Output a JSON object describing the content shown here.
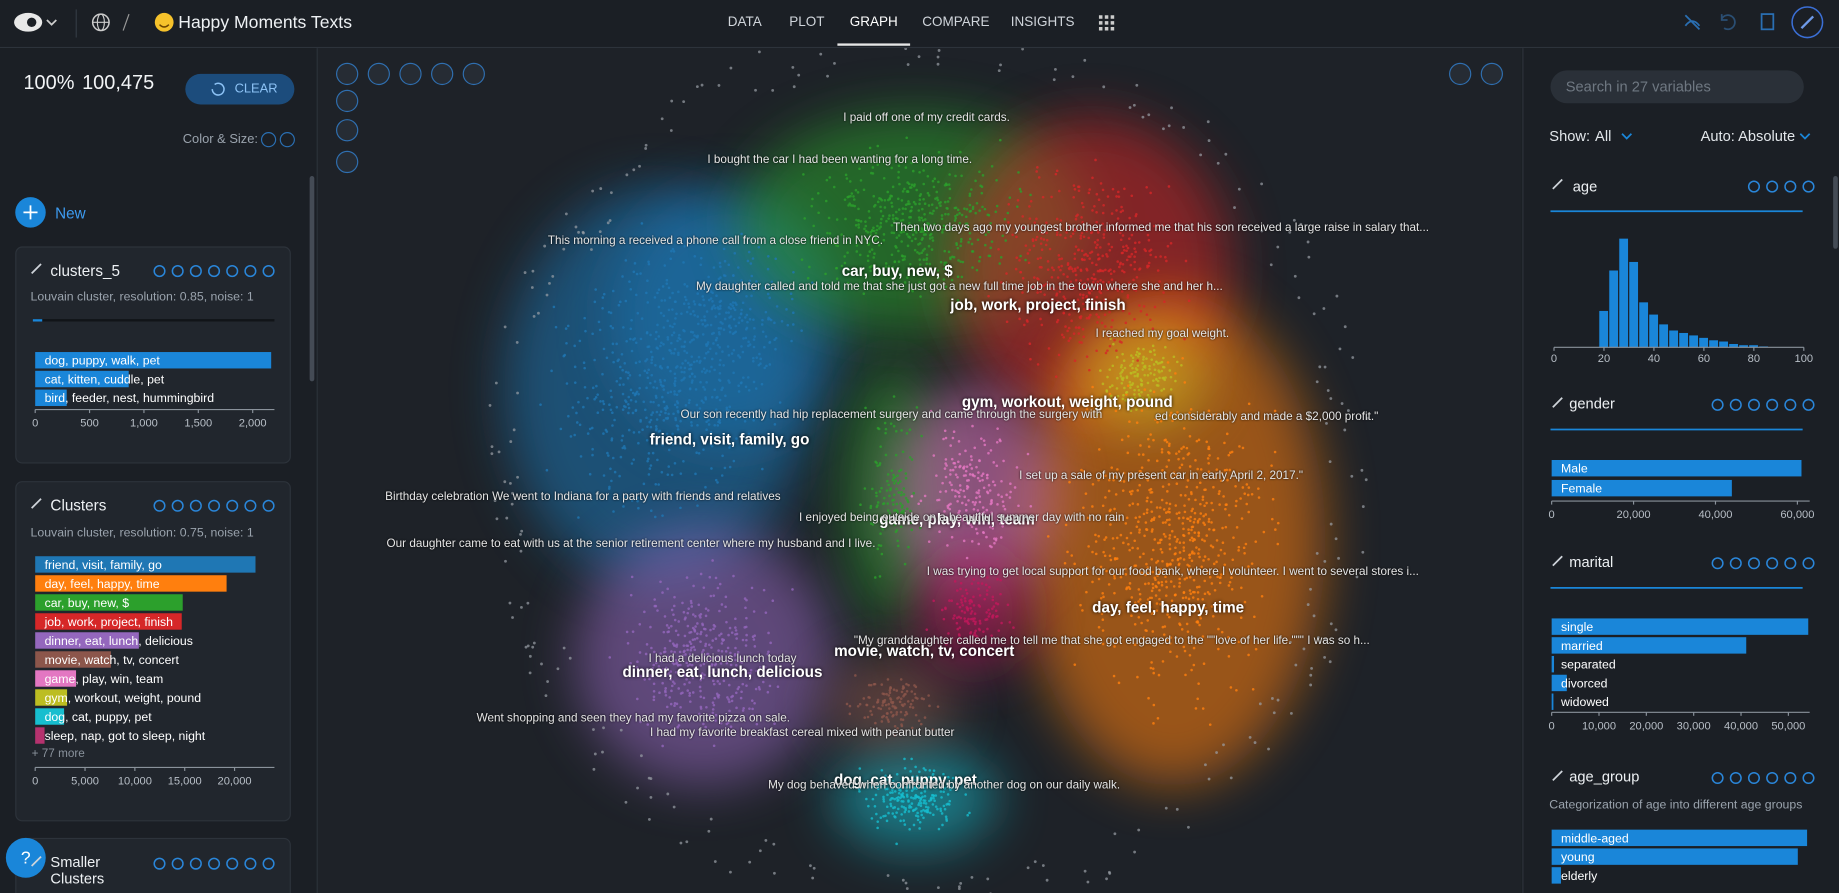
{
  "header": {
    "title": "Happy Moments Texts",
    "tabs": [
      "DATA",
      "PLOT",
      "GRAPH",
      "COMPARE",
      "INSIGHTS"
    ]
  },
  "left": {
    "percent": "100%",
    "count": "100,475",
    "clear": "CLEAR",
    "color_size": "Color & Size:",
    "new": "New",
    "help": "?",
    "cards": [
      {
        "title": "clusters_5",
        "subtitle": "Louvain cluster, resolution: 0.85, noise: 1",
        "chart": {
          "categories": [
            "dog, puppy, walk, pet",
            "cat, kitten, cuddle, pet",
            "bird, feeder, nest, hummingbird"
          ],
          "values": [
            2170,
            860,
            290
          ],
          "color": "#1a86d9",
          "xlim": [
            0,
            2200
          ],
          "xticks": [
            0,
            500,
            {
              "value": 1000,
              "label": "1,000"
            },
            {
              "value": 1500,
              "label": "1,500"
            },
            {
              "value": 2000,
              "label": "2,000"
            }
          ]
        }
      },
      {
        "title": "Clusters",
        "subtitle": "Louvain cluster, resolution: 0.75, noise: 1",
        "chart": {
          "categories": [
            "friend, visit, family, go",
            "day, feel, happy, time",
            "car, buy, new, $",
            "job, work, project, finish",
            "dinner, eat, lunch, delicious",
            "movie, watch, tv, concert",
            "game, play, win, team",
            "gym, workout, weight, pound",
            "dog, cat, puppy, pet",
            "sleep, nap, got to sleep, night"
          ],
          "values": [
            22100,
            19200,
            14800,
            14700,
            10400,
            7600,
            4100,
            3200,
            2900,
            940
          ],
          "colors": [
            "#1f77b4",
            "#ff7f0e",
            "#2ca02c",
            "#d62728",
            "#9467bd",
            "#8c564b",
            "#e377c2",
            "#bcbd22",
            "#17becf",
            "#b5326e"
          ],
          "xlim": [
            0,
            24000
          ],
          "xticks": [
            0,
            {
              "value": 5000,
              "label": "5,000"
            },
            {
              "value": 10000,
              "label": "10,000"
            },
            {
              "value": 15000,
              "label": "15,000"
            },
            {
              "value": 20000,
              "label": "20,000"
            }
          ],
          "more": "+ 77 more"
        }
      },
      {
        "title": "Smaller Clusters"
      }
    ]
  },
  "graph": {
    "cluster_labels": [
      "car, buy, new, $",
      "job, work, project, finish",
      "gym, workout, weight, pound",
      "friend, visit, family, go",
      "game, play, win, team",
      "day, feel, happy, time",
      "movie, watch, tv, concert",
      "dinner, eat, lunch, delicious",
      "dog, cat, puppy, pet"
    ],
    "samples": [
      "I paid off one of my credit cards.",
      "I bought the car I had been wanting for a long time.",
      "Then two days ago my youngest brother informed me that his son received a large raise in salary that...",
      "This morning a received a phone call from a close friend in NYC.",
      "My daughter called and told me that she just got a new full time job in the town where she and her h...",
      "I reached my goal weight.",
      "Our son recently had hip replacement surgery and came through the surgery with",
      "ed considerably and made a $2,000 profit.\"",
      "I set up a sale of my present car in early April 2, 2017.\"",
      "Birthday celebration We went to Indiana for a party with friends and relatives",
      "I enjoyed being outside on a beautiful summer day with no rain",
      "Our daughter came to eat with us at the senior retirement center where my husband and I live.",
      "I was trying to get local support for our food bank, where I volunteer.  I went to several stores i...",
      "\"My granddaughter called me to tell me that she got engaged to the \"\"love of her life.\"\"\" I was so h...",
      "I had a delicious lunch today",
      "Went shopping and seen they had my favorite pizza on sale.",
      "I had my favorite breakfast cereal mixed with peanut butter",
      "My dog behaved when confronted by another dog on our daily walk."
    ]
  },
  "right": {
    "search_placeholder": "Search in 27 variables",
    "show": "Show:",
    "show_value": "All",
    "scale": "Auto: Absolute",
    "variables": [
      {
        "name": "age",
        "chart": {
          "type": "histogram",
          "bins": [
            18,
            22,
            26,
            30,
            34,
            38,
            42,
            46,
            50,
            54,
            58,
            62,
            66,
            70,
            74,
            78,
            82,
            86
          ],
          "counts": [
            7500,
            15750,
            22250,
            17500,
            9250,
            6750,
            4750,
            3500,
            3000,
            2500,
            2000,
            1500,
            1250,
            750,
            500,
            500,
            250
          ],
          "color": "#1a86d9",
          "xlim": [
            0,
            100
          ],
          "ylim": [
            0,
            23000
          ],
          "xticks": [
            0,
            20,
            40,
            60,
            80,
            100
          ]
        }
      },
      {
        "name": "gender",
        "chart": {
          "type": "bar",
          "categories": [
            "Male",
            "Female"
          ],
          "values": [
            61000,
            44000
          ],
          "color": "#1a86d9",
          "xlim": [
            0,
            63000
          ],
          "xticks": [
            0,
            {
              "value": 20000,
              "label": "20,000"
            },
            {
              "value": 40000,
              "label": "40,000"
            },
            {
              "value": 60000,
              "label": "60,000"
            }
          ]
        }
      },
      {
        "name": "marital",
        "chart": {
          "type": "bar",
          "categories": [
            "single",
            "married",
            "separated",
            "divorced",
            "widowed"
          ],
          "values": [
            54200,
            41100,
            500,
            3200,
            300
          ],
          "color": "#1a86d9",
          "xlim": [
            0,
            54500
          ],
          "xticks": [
            0,
            {
              "value": 10000,
              "label": "10,000"
            },
            {
              "value": 20000,
              "label": "20,000"
            },
            {
              "value": 30000,
              "label": "30,000"
            },
            {
              "value": 40000,
              "label": "40,000"
            },
            {
              "value": 50000,
              "label": "50,000"
            }
          ]
        }
      },
      {
        "name": "age_group",
        "subtitle": "Categorization of age into different age groups",
        "chart": {
          "type": "bar",
          "categories": [
            "middle-aged",
            "young",
            "elderly"
          ],
          "values": [
            49500,
            47700,
            1800
          ],
          "color": "#1a86d9",
          "xlim": [
            0,
            50000
          ]
        }
      }
    ]
  }
}
